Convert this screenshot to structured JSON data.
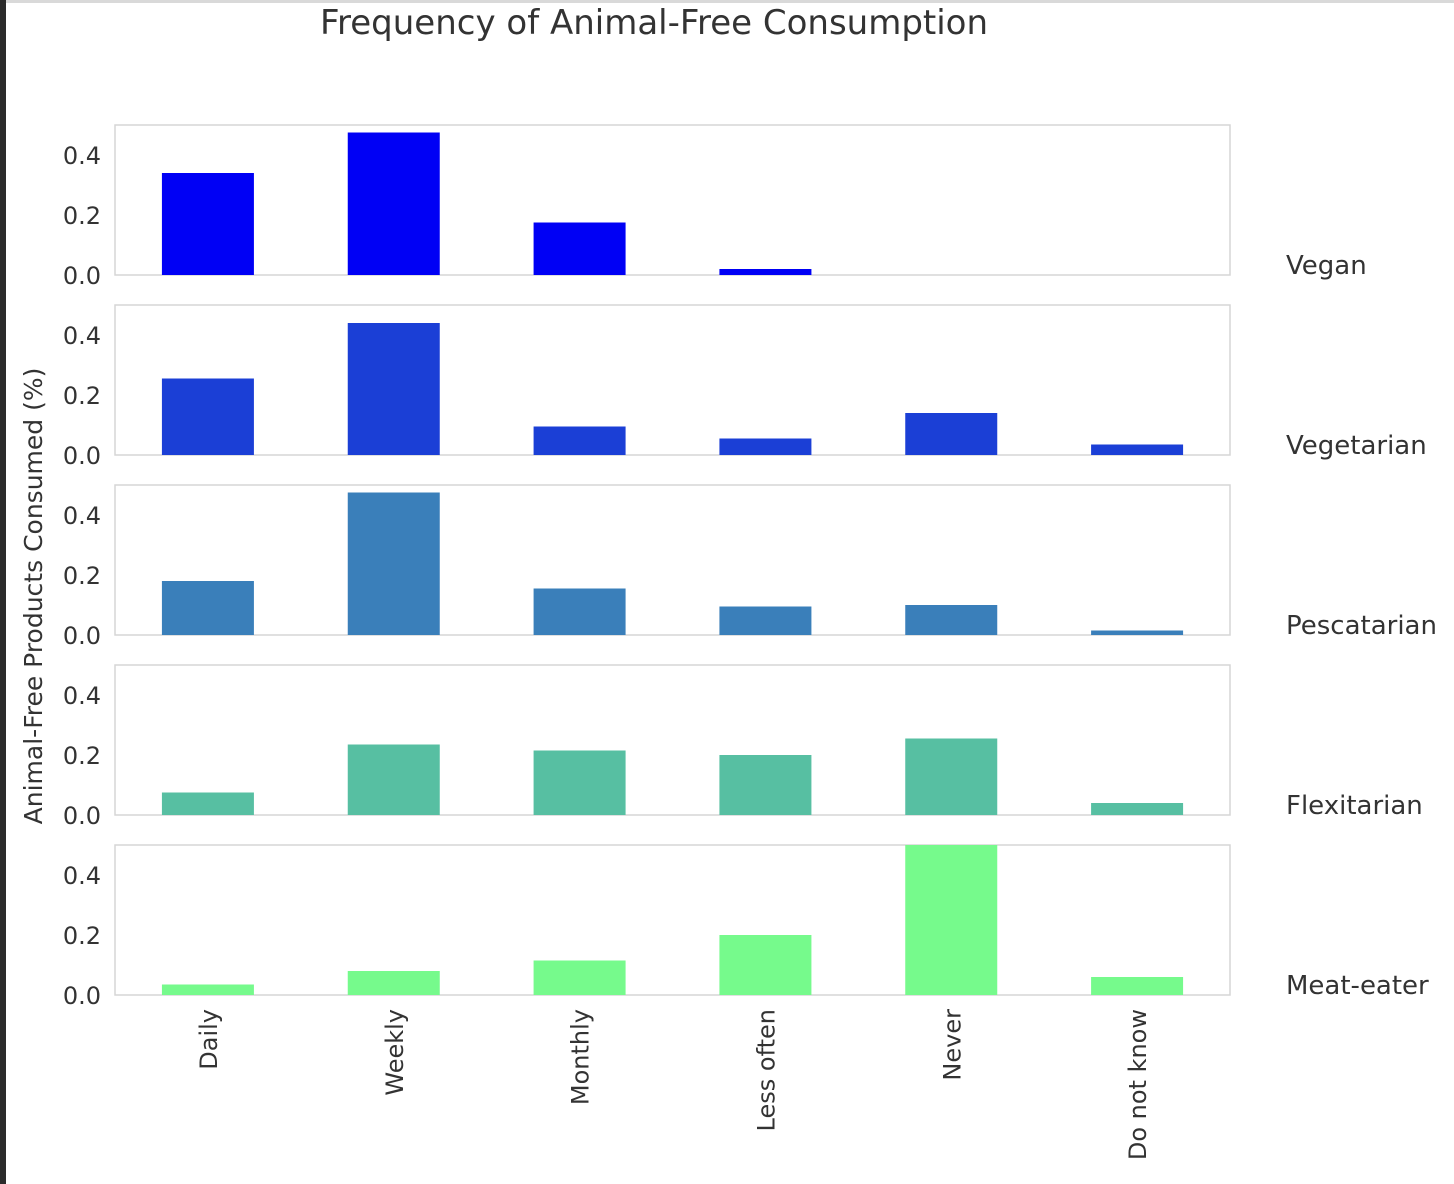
{
  "chart_data": {
    "type": "bar",
    "title": "Frequency of Animal-Free Consumption",
    "ylabel": "Animal-Free Products Consumed (%)",
    "xlabel": "",
    "categories": [
      "Daily",
      "Weekly",
      "Monthly",
      "Less often",
      "Never",
      "Do not know"
    ],
    "ylim": [
      0,
      0.5
    ],
    "yticks": [
      "0.0",
      "0.2",
      "0.4"
    ],
    "ytick_values": [
      0.0,
      0.2,
      0.4
    ],
    "grid": false,
    "layout": "stacked small multiples, one panel per series, shared x axis",
    "series": [
      {
        "name": "Vegan",
        "color": "#0000f5",
        "values": [
          0.34,
          0.475,
          0.175,
          0.02,
          0.0,
          0.0
        ]
      },
      {
        "name": "Vegetarian",
        "color": "#1b3fd6",
        "values": [
          0.255,
          0.44,
          0.095,
          0.055,
          0.14,
          0.035
        ]
      },
      {
        "name": "Pescatarian",
        "color": "#3a7fba",
        "values": [
          0.18,
          0.475,
          0.155,
          0.095,
          0.1,
          0.015
        ]
      },
      {
        "name": "Flexitarian",
        "color": "#57bfa2",
        "values": [
          0.075,
          0.235,
          0.215,
          0.2,
          0.255,
          0.04
        ]
      },
      {
        "name": "Meat-eater",
        "color": "#76fa8c",
        "values": [
          0.035,
          0.08,
          0.115,
          0.2,
          0.5,
          0.06
        ]
      }
    ]
  }
}
